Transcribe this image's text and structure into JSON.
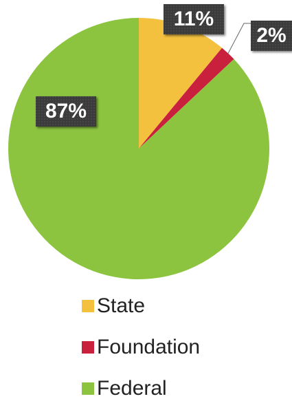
{
  "chart_data": {
    "type": "pie",
    "categories": [
      "State",
      "Foundation",
      "Federal"
    ],
    "values": [
      11,
      2,
      87
    ],
    "value_labels": [
      "11%",
      "2%",
      "87%"
    ],
    "colors": [
      "#f4c13f",
      "#c9203d",
      "#8dc43f"
    ],
    "legend": "bottom"
  }
}
